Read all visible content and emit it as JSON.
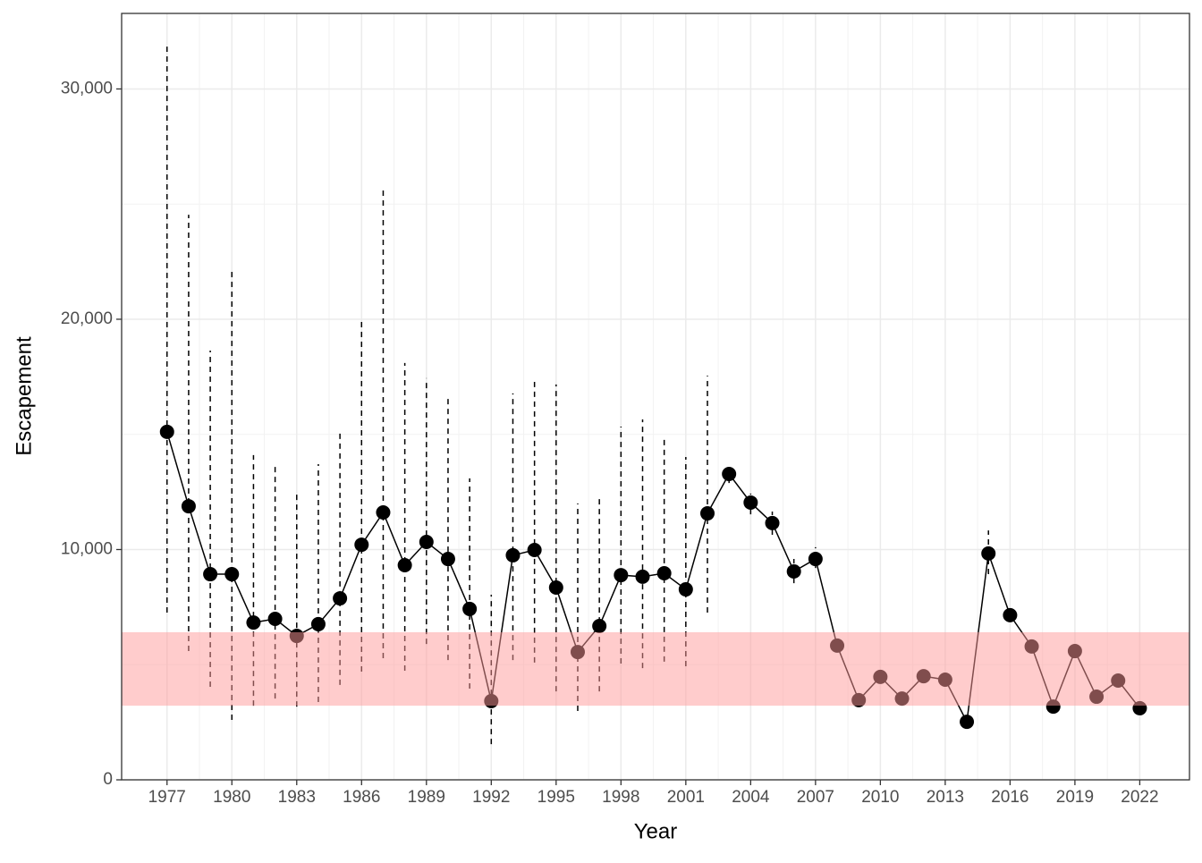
{
  "chart_data": {
    "type": "line",
    "x_label": "Year",
    "y_label": "Escapement",
    "x": [
      1977,
      1978,
      1979,
      1980,
      1981,
      1982,
      1983,
      1984,
      1985,
      1986,
      1987,
      1988,
      1989,
      1990,
      1991,
      1992,
      1993,
      1994,
      1995,
      1996,
      1997,
      1998,
      1999,
      2000,
      2001,
      2002,
      2003,
      2004,
      2005,
      2006,
      2007,
      2008,
      2009,
      2010,
      2011,
      2012,
      2013,
      2014,
      2015,
      2016,
      2017,
      2018,
      2019,
      2020,
      2021,
      2022
    ],
    "series": [
      {
        "color": "#000000",
        "values": [
          15110,
          11880,
          8930,
          8930,
          6830,
          6990,
          6250,
          6760,
          7880,
          10210,
          11610,
          9320,
          10330,
          9590,
          7420,
          3420,
          9750,
          9980,
          8350,
          5550,
          6680,
          8890,
          8820,
          8970,
          8270,
          11570,
          13280,
          12040,
          11150,
          9050,
          9590,
          5830,
          3460,
          4470,
          3530,
          4500,
          4350,
          2520,
          9830,
          7150,
          5790,
          3180,
          5590,
          3610,
          4310,
          3110
        ],
        "lower": [
          7260,
          5590,
          4040,
          2600,
          3220,
          3530,
          3180,
          3380,
          4120,
          4700,
          5280,
          4740,
          5900,
          5200,
          3960,
          1550,
          5200,
          5090,
          3840,
          2990,
          3840,
          5050,
          4850,
          5130,
          4930,
          7260,
          12890,
          11530,
          10640,
          8540,
          9200,
          null,
          null,
          null,
          null,
          null,
          null,
          null,
          8930,
          null,
          null,
          null,
          null,
          null,
          null,
          null
        ],
        "upper": [
          31840,
          24540,
          18640,
          22210,
          14100,
          13630,
          12540,
          13710,
          15070,
          20000,
          25590,
          18100,
          17440,
          16580,
          13090,
          8040,
          16780,
          17280,
          17170,
          12000,
          12310,
          15340,
          15650,
          14870,
          14020,
          17550,
          13670,
          12430,
          11650,
          9590,
          10100,
          null,
          null,
          null,
          null,
          null,
          null,
          null,
          10830,
          null,
          null,
          null,
          null,
          null,
          null,
          null
        ]
      }
    ],
    "goal_range": [
      3220,
      6410
    ],
    "goal_color": "#ff9999",
    "xlim": [
      1974.9,
      2024.3
    ],
    "ylim": [
      0,
      33280
    ],
    "xticks": [
      1977,
      1980,
      1983,
      1986,
      1989,
      1992,
      1995,
      1998,
      2001,
      2004,
      2007,
      2010,
      2013,
      2016,
      2019,
      2022
    ],
    "yticks": [
      0,
      {
        "value": 10000,
        "label": "10,000"
      },
      {
        "value": 20000,
        "label": "20,000"
      },
      {
        "value": 30000,
        "label": "30,000"
      }
    ],
    "grid": true
  }
}
